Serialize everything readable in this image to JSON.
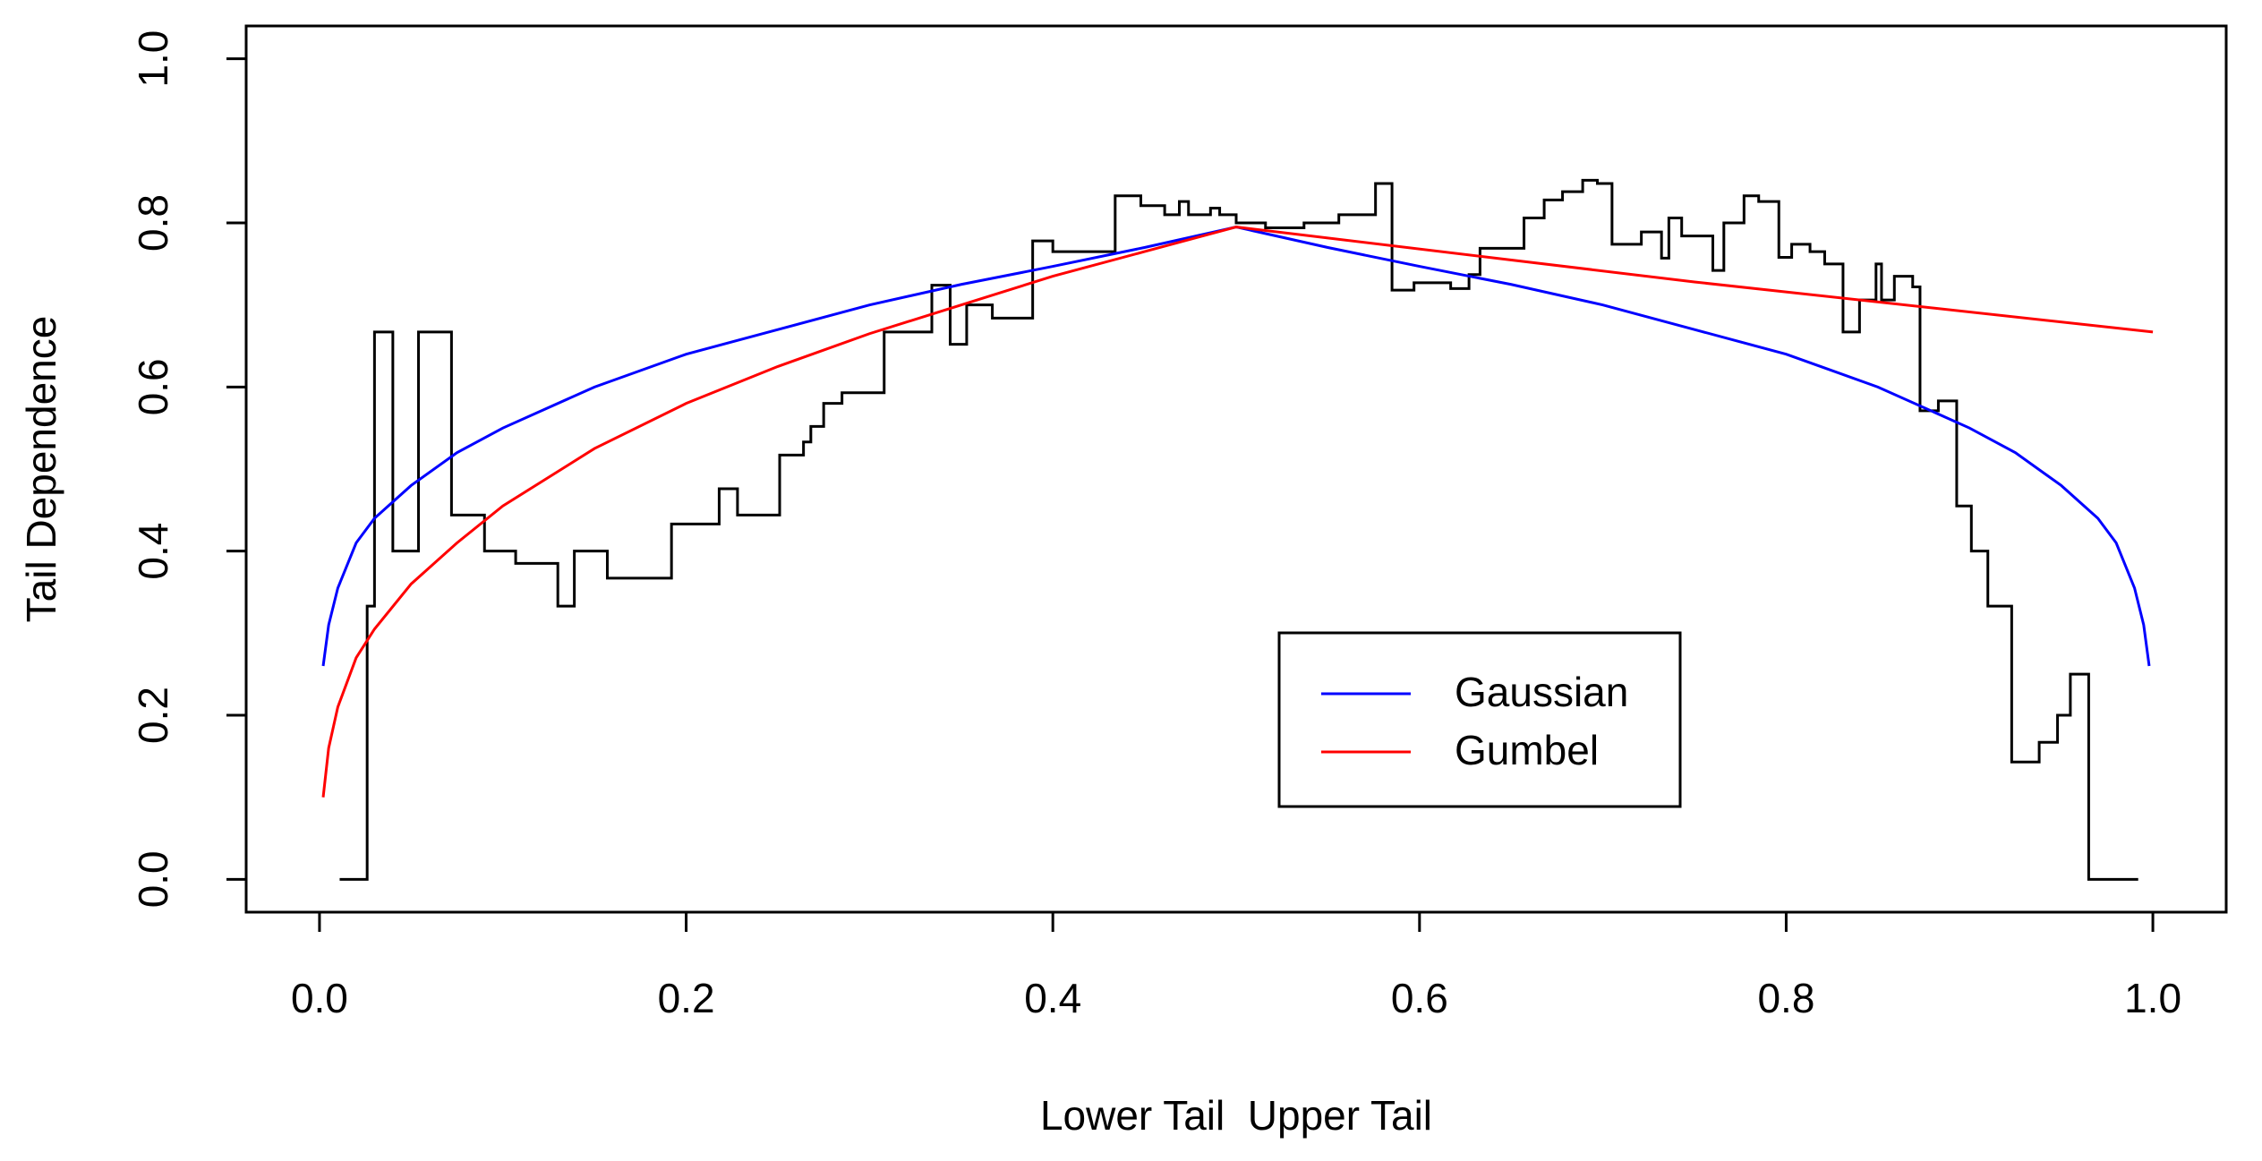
{
  "chart_data": {
    "type": "line",
    "xlabel": "Lower Tail  Upper Tail",
    "ylabel": "Tail Dependence",
    "xlim": [
      -0.04,
      1.04
    ],
    "ylim": [
      -0.04,
      1.04
    ],
    "xticks": [
      {
        "value": 0,
        "label": "0.0"
      },
      0.2,
      0.4,
      0.6,
      0.8,
      {
        "value": 1,
        "label": "1.0"
      }
    ],
    "yticks": [
      {
        "value": 0,
        "label": "0.0"
      },
      0.2,
      0.4,
      0.6,
      0.8,
      {
        "value": 1,
        "label": "1.0"
      }
    ],
    "legend": "bottom",
    "series": [
      {
        "color": "#000000",
        "step": true,
        "x": [
          0.011,
          0.026,
          0.03,
          0.04,
          0.054,
          0.072,
          0.09,
          0.107,
          0.13,
          0.139,
          0.157,
          0.192,
          0.218,
          0.228,
          0.251,
          0.264,
          0.268,
          0.275,
          0.285,
          0.308,
          0.334,
          0.344,
          0.353,
          0.367,
          0.389,
          0.4,
          0.434,
          0.448,
          0.461,
          0.469,
          0.474,
          0.486,
          0.491,
          0.5,
          0.516,
          0.537,
          0.556,
          0.576,
          0.585,
          0.597,
          0.617,
          0.627,
          0.633,
          0.657,
          0.668,
          0.678,
          0.689,
          0.697,
          0.705,
          0.721,
          0.732,
          0.736,
          0.743,
          0.76,
          0.766,
          0.777,
          0.785,
          0.796,
          0.803,
          0.813,
          0.821,
          0.831,
          0.84,
          0.849,
          0.852,
          0.859,
          0.869,
          0.873,
          0.883,
          0.893,
          0.901,
          0.91,
          0.923,
          0.938,
          0.948,
          0.955,
          0.965,
          0.992
        ],
        "values": [
          0,
          0.333,
          0.667,
          0.4,
          0.667,
          0.444,
          0.4,
          0.385,
          0.333,
          0.4,
          0.367,
          0.433,
          0.476,
          0.444,
          0.517,
          0.533,
          0.552,
          0.58,
          0.593,
          0.667,
          0.724,
          0.652,
          0.7,
          0.684,
          0.778,
          0.765,
          0.833,
          0.821,
          0.81,
          0.826,
          0.81,
          0.818,
          0.81,
          0.8,
          0.794,
          0.8,
          0.81,
          0.848,
          0.718,
          0.727,
          0.72,
          0.737,
          0.769,
          0.806,
          0.828,
          0.838,
          0.852,
          0.848,
          0.774,
          0.789,
          0.757,
          0.806,
          0.784,
          0.742,
          0.8,
          0.833,
          0.826,
          0.758,
          0.774,
          0.765,
          0.75,
          0.667,
          0.706,
          0.75,
          0.706,
          0.735,
          0.722,
          0.571,
          0.583,
          0.455,
          0.4,
          0.333,
          0.143,
          0.167,
          0.2,
          0.25,
          0,
          0
        ]
      },
      {
        "name": "Gaussian",
        "color": "#0000ff",
        "x": [
          0.002,
          0.005,
          0.01,
          0.02,
          0.03,
          0.05,
          0.075,
          0.1,
          0.15,
          0.2,
          0.25,
          0.3,
          0.35,
          0.4,
          0.45,
          0.5,
          0.55,
          0.6,
          0.65,
          0.7,
          0.75,
          0.8,
          0.85,
          0.9,
          0.925,
          0.95,
          0.97,
          0.98,
          0.99,
          0.995,
          0.998
        ],
        "values": [
          0.26,
          0.31,
          0.355,
          0.41,
          0.44,
          0.48,
          0.52,
          0.55,
          0.6,
          0.64,
          0.67,
          0.7,
          0.725,
          0.747,
          0.77,
          0.795,
          0.77,
          0.747,
          0.725,
          0.7,
          0.67,
          0.64,
          0.6,
          0.55,
          0.52,
          0.48,
          0.44,
          0.41,
          0.355,
          0.31,
          0.26
        ]
      },
      {
        "name": "Gumbel",
        "color": "#ff0000",
        "x": [
          0.002,
          0.005,
          0.01,
          0.02,
          0.03,
          0.05,
          0.075,
          0.1,
          0.15,
          0.2,
          0.25,
          0.3,
          0.35,
          0.4,
          0.45,
          0.5,
          0.75,
          1.0
        ],
        "values": [
          0.1,
          0.16,
          0.21,
          0.27,
          0.305,
          0.36,
          0.41,
          0.455,
          0.525,
          0.58,
          0.625,
          0.665,
          0.7,
          0.735,
          0.765,
          0.795,
          0.728,
          0.667
        ]
      }
    ]
  }
}
